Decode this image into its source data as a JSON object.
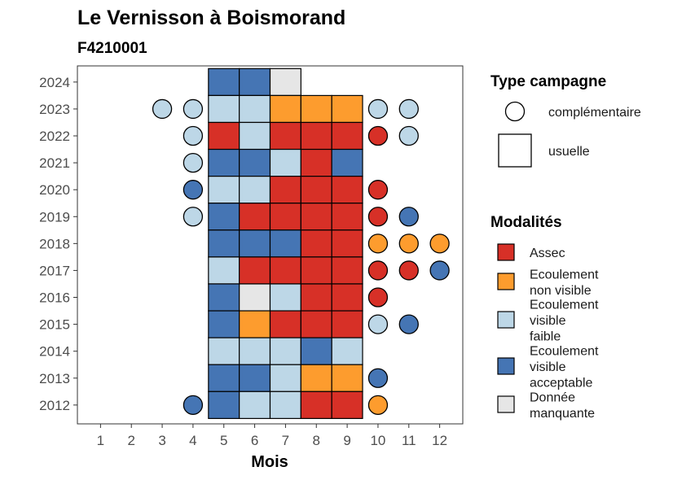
{
  "chart_data": {
    "type": "heatmap",
    "title": "Le Vernisson à Boismorand",
    "subtitle": "F4210001",
    "xlabel": "Mois",
    "ylabel": "",
    "x_ticks": [
      "1",
      "2",
      "3",
      "4",
      "5",
      "6",
      "7",
      "8",
      "9",
      "10",
      "11",
      "12"
    ],
    "y_ticks": [
      "2024",
      "2023",
      "2022",
      "2021",
      "2020",
      "2019",
      "2018",
      "2017",
      "2016",
      "2015",
      "2014",
      "2013",
      "2012"
    ],
    "colors": {
      "Assec": "#d73027",
      "Ecoulement non visible": "#fd9c2e",
      "Ecoulement visible faible": "#bdd7e7",
      "Ecoulement visible acceptable": "#4575b4",
      "Donnée manquante": "#e6e6e6"
    },
    "usuelle": [
      {
        "year": "2024",
        "cells": [
          [
            "5",
            "Ecoulement visible acceptable"
          ],
          [
            "6",
            "Ecoulement visible acceptable"
          ],
          [
            "7",
            "Donnée manquante"
          ]
        ]
      },
      {
        "year": "2023",
        "cells": [
          [
            "5",
            "Ecoulement visible faible"
          ],
          [
            "6",
            "Ecoulement visible faible"
          ],
          [
            "7",
            "Ecoulement non visible"
          ],
          [
            "8",
            "Ecoulement non visible"
          ],
          [
            "9",
            "Ecoulement non visible"
          ]
        ]
      },
      {
        "year": "2022",
        "cells": [
          [
            "5",
            "Assec"
          ],
          [
            "6",
            "Ecoulement visible faible"
          ],
          [
            "7",
            "Assec"
          ],
          [
            "8",
            "Assec"
          ],
          [
            "9",
            "Assec"
          ]
        ]
      },
      {
        "year": "2021",
        "cells": [
          [
            "5",
            "Ecoulement visible acceptable"
          ],
          [
            "6",
            "Ecoulement visible acceptable"
          ],
          [
            "7",
            "Ecoulement visible faible"
          ],
          [
            "8",
            "Assec"
          ],
          [
            "9",
            "Ecoulement visible acceptable"
          ]
        ]
      },
      {
        "year": "2020",
        "cells": [
          [
            "5",
            "Ecoulement visible faible"
          ],
          [
            "6",
            "Ecoulement visible faible"
          ],
          [
            "7",
            "Assec"
          ],
          [
            "8",
            "Assec"
          ],
          [
            "9",
            "Assec"
          ]
        ]
      },
      {
        "year": "2019",
        "cells": [
          [
            "5",
            "Ecoulement visible acceptable"
          ],
          [
            "6",
            "Assec"
          ],
          [
            "7",
            "Assec"
          ],
          [
            "8",
            "Assec"
          ],
          [
            "9",
            "Assec"
          ]
        ]
      },
      {
        "year": "2018",
        "cells": [
          [
            "5",
            "Ecoulement visible acceptable"
          ],
          [
            "6",
            "Ecoulement visible acceptable"
          ],
          [
            "7",
            "Ecoulement visible acceptable"
          ],
          [
            "8",
            "Assec"
          ],
          [
            "9",
            "Assec"
          ]
        ]
      },
      {
        "year": "2017",
        "cells": [
          [
            "5",
            "Ecoulement visible faible"
          ],
          [
            "6",
            "Assec"
          ],
          [
            "7",
            "Assec"
          ],
          [
            "8",
            "Assec"
          ],
          [
            "9",
            "Assec"
          ]
        ]
      },
      {
        "year": "2016",
        "cells": [
          [
            "5",
            "Ecoulement visible acceptable"
          ],
          [
            "6",
            "Donnée manquante"
          ],
          [
            "7",
            "Ecoulement visible faible"
          ],
          [
            "8",
            "Assec"
          ],
          [
            "9",
            "Assec"
          ]
        ]
      },
      {
        "year": "2015",
        "cells": [
          [
            "5",
            "Ecoulement visible acceptable"
          ],
          [
            "6",
            "Ecoulement non visible"
          ],
          [
            "7",
            "Assec"
          ],
          [
            "8",
            "Assec"
          ],
          [
            "9",
            "Assec"
          ]
        ]
      },
      {
        "year": "2014",
        "cells": [
          [
            "5",
            "Ecoulement visible faible"
          ],
          [
            "6",
            "Ecoulement visible faible"
          ],
          [
            "7",
            "Ecoulement visible faible"
          ],
          [
            "8",
            "Ecoulement visible acceptable"
          ],
          [
            "9",
            "Ecoulement visible faible"
          ]
        ]
      },
      {
        "year": "2013",
        "cells": [
          [
            "5",
            "Ecoulement visible acceptable"
          ],
          [
            "6",
            "Ecoulement visible acceptable"
          ],
          [
            "7",
            "Ecoulement visible faible"
          ],
          [
            "8",
            "Ecoulement non visible"
          ],
          [
            "9",
            "Ecoulement non visible"
          ]
        ]
      },
      {
        "year": "2012",
        "cells": [
          [
            "5",
            "Ecoulement visible acceptable"
          ],
          [
            "6",
            "Ecoulement visible faible"
          ],
          [
            "7",
            "Ecoulement visible faible"
          ],
          [
            "8",
            "Assec"
          ],
          [
            "9",
            "Assec"
          ]
        ]
      }
    ],
    "complementaire": [
      {
        "year": "2023",
        "cells": [
          [
            "3",
            "Ecoulement visible faible"
          ],
          [
            "4",
            "Ecoulement visible faible"
          ],
          [
            "10",
            "Ecoulement visible faible"
          ],
          [
            "11",
            "Ecoulement visible faible"
          ]
        ]
      },
      {
        "year": "2022",
        "cells": [
          [
            "4",
            "Ecoulement visible faible"
          ],
          [
            "10",
            "Assec"
          ],
          [
            "11",
            "Ecoulement visible faible"
          ]
        ]
      },
      {
        "year": "2021",
        "cells": [
          [
            "4",
            "Ecoulement visible faible"
          ]
        ]
      },
      {
        "year": "2020",
        "cells": [
          [
            "4",
            "Ecoulement visible acceptable"
          ],
          [
            "10",
            "Assec"
          ]
        ]
      },
      {
        "year": "2019",
        "cells": [
          [
            "4",
            "Ecoulement visible faible"
          ],
          [
            "10",
            "Assec"
          ],
          [
            "11",
            "Ecoulement visible acceptable"
          ]
        ]
      },
      {
        "year": "2018",
        "cells": [
          [
            "10",
            "Ecoulement non visible"
          ],
          [
            "11",
            "Ecoulement non visible"
          ],
          [
            "12",
            "Ecoulement non visible"
          ]
        ]
      },
      {
        "year": "2017",
        "cells": [
          [
            "10",
            "Assec"
          ],
          [
            "11",
            "Assec"
          ],
          [
            "12",
            "Ecoulement visible acceptable"
          ]
        ]
      },
      {
        "year": "2016",
        "cells": [
          [
            "10",
            "Assec"
          ]
        ]
      },
      {
        "year": "2015",
        "cells": [
          [
            "10",
            "Ecoulement visible faible"
          ],
          [
            "11",
            "Ecoulement visible acceptable"
          ]
        ]
      },
      {
        "year": "2013",
        "cells": [
          [
            "10",
            "Ecoulement visible acceptable"
          ]
        ]
      },
      {
        "year": "2012",
        "cells": [
          [
            "4",
            "Ecoulement visible acceptable"
          ],
          [
            "10",
            "Ecoulement non visible"
          ]
        ]
      }
    ],
    "legend": {
      "type_title": "Type campagne",
      "type_items": [
        {
          "shape": "circle",
          "label": "complémentaire"
        },
        {
          "shape": "square",
          "label": "usuelle"
        }
      ],
      "mod_title": "Modalités",
      "mod_items": [
        {
          "key": "Assec",
          "lines": [
            "Assec"
          ]
        },
        {
          "key": "Ecoulement non visible",
          "lines": [
            "Ecoulement",
            "non visible"
          ]
        },
        {
          "key": "Ecoulement visible faible",
          "lines": [
            "Ecoulement",
            "visible",
            "faible"
          ]
        },
        {
          "key": "Ecoulement visible acceptable",
          "lines": [
            "Ecoulement",
            "visible",
            "acceptable"
          ]
        },
        {
          "key": "Donnée manquante",
          "lines": [
            "Donnée",
            "manquante"
          ]
        }
      ]
    }
  }
}
